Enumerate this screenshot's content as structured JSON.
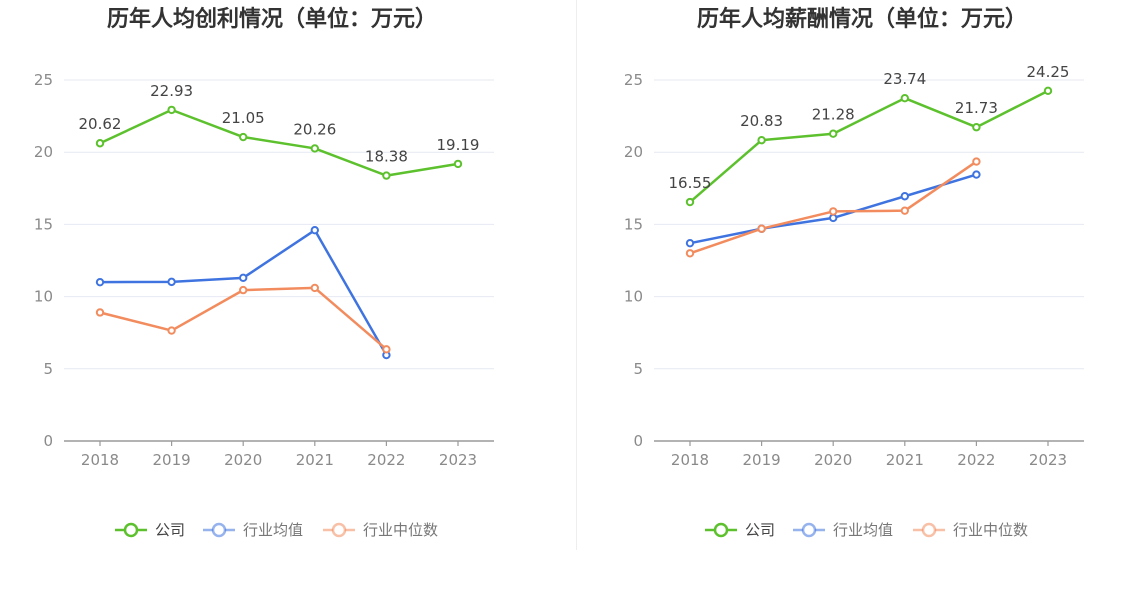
{
  "chart_data": [
    {
      "type": "line",
      "title": "历年人均创利情况（单位：万元）",
      "categories": [
        "2018",
        "2019",
        "2020",
        "2021",
        "2022",
        "2023"
      ],
      "ylim": [
        0,
        25
      ],
      "yticks": [
        "0",
        "5",
        "10",
        "15",
        "20",
        "25"
      ],
      "grid": true,
      "legend_position": "bottom",
      "series": [
        {
          "name": "公司",
          "color": "#5cc12d",
          "values": [
            20.62,
            22.93,
            21.05,
            20.26,
            18.38,
            19.19
          ],
          "labels": [
            "20.62",
            "22.93",
            "21.05",
            "20.26",
            "18.38",
            "19.19"
          ]
        },
        {
          "name": "行业均值",
          "color": "#3f74e0",
          "values": [
            11.0,
            11.02,
            11.3,
            14.6,
            5.95,
            null
          ]
        },
        {
          "name": "行业中位数",
          "color": "#f28c5e",
          "values": [
            8.9,
            7.65,
            10.45,
            10.6,
            6.35,
            null
          ]
        }
      ]
    },
    {
      "type": "line",
      "title": "历年人均薪酬情况（单位：万元）",
      "categories": [
        "2018",
        "2019",
        "2020",
        "2021",
        "2022",
        "2023"
      ],
      "ylim": [
        0,
        25
      ],
      "yticks": [
        "0",
        "5",
        "10",
        "15",
        "20",
        "25"
      ],
      "grid": true,
      "legend_position": "bottom",
      "series": [
        {
          "name": "公司",
          "color": "#5cc12d",
          "values": [
            16.55,
            20.83,
            21.28,
            23.74,
            21.73,
            24.25
          ],
          "labels": [
            "16.55",
            "20.83",
            "21.28",
            "23.74",
            "21.73",
            "24.25"
          ]
        },
        {
          "name": "行业均值",
          "color": "#3f74e0",
          "values": [
            13.7,
            14.7,
            15.45,
            16.95,
            18.45,
            null
          ]
        },
        {
          "name": "行业中位数",
          "color": "#f28c5e",
          "values": [
            13.0,
            14.7,
            15.9,
            15.95,
            19.35,
            null
          ]
        }
      ]
    }
  ]
}
